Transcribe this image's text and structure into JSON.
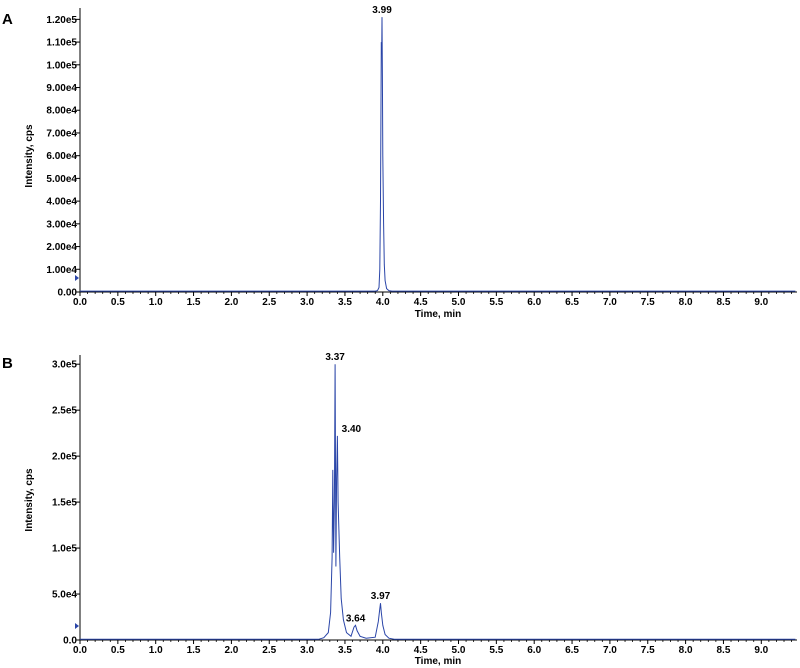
{
  "chart_data": [
    {
      "panel": "A",
      "type": "line",
      "xlabel": "Time, min",
      "ylabel": "Intensity, cps",
      "xlim": [
        0.0,
        9.45
      ],
      "ylim": [
        0,
        125000
      ],
      "x_ticks": [
        0.0,
        0.5,
        1.0,
        1.5,
        2.0,
        2.5,
        3.0,
        3.5,
        4.0,
        4.5,
        5.0,
        5.5,
        6.0,
        6.5,
        7.0,
        7.5,
        8.0,
        8.5,
        9.0
      ],
      "x_tick_labels": [
        "0.0",
        "0.5",
        "1.0",
        "1.5",
        "2.0",
        "2.5",
        "3.0",
        "3.5",
        "4.0",
        "4.5",
        "5.0",
        "5.5",
        "6.0",
        "6.5",
        "7.0",
        "7.5",
        "8.0",
        "8.5",
        "9.0"
      ],
      "y_ticks": [
        0,
        10000,
        20000,
        30000,
        40000,
        50000,
        60000,
        70000,
        80000,
        90000,
        100000,
        110000,
        120000
      ],
      "y_tick_labels": [
        "0.00",
        "1.00e4",
        "2.00e4",
        "3.00e4",
        "4.00e4",
        "5.00e4",
        "6.00e4",
        "7.00e4",
        "8.00e4",
        "9.00e4",
        "1.00e5",
        "1.10e5",
        "1.20e5"
      ],
      "series": [
        {
          "x": [
            0.0,
            3.9,
            3.93,
            3.95,
            3.96,
            3.97,
            3.975,
            3.98,
            3.985,
            3.99,
            3.995,
            4.0,
            4.01,
            4.02,
            4.03,
            4.05,
            4.08,
            4.12,
            9.45
          ],
          "y": [
            400,
            400,
            600,
            2000,
            10000,
            40000,
            75000,
            110000,
            105000,
            121000,
            95000,
            60000,
            30000,
            12000,
            5000,
            1500,
            600,
            400,
            400
          ]
        }
      ],
      "annotations": [
        {
          "x": 3.99,
          "y": 121000,
          "text": "3.99"
        }
      ]
    },
    {
      "panel": "B",
      "type": "line",
      "xlabel": "Time, min",
      "ylabel": "Intensity, cps",
      "xlim": [
        0.0,
        9.45
      ],
      "ylim": [
        0,
        310000
      ],
      "x_ticks": [
        0.0,
        0.5,
        1.0,
        1.5,
        2.0,
        2.5,
        3.0,
        3.5,
        4.0,
        4.5,
        5.0,
        5.5,
        6.0,
        6.5,
        7.0,
        7.5,
        8.0,
        8.5,
        9.0
      ],
      "x_tick_labels": [
        "0.0",
        "0.5",
        "1.0",
        "1.5",
        "2.0",
        "2.5",
        "3.0",
        "3.5",
        "4.0",
        "4.5",
        "5.0",
        "5.5",
        "6.0",
        "6.5",
        "7.0",
        "7.5",
        "8.0",
        "8.5",
        "9.0"
      ],
      "y_ticks": [
        0,
        50000,
        100000,
        150000,
        200000,
        250000,
        300000
      ],
      "y_tick_labels": [
        "0.0",
        "5.0e4",
        "1.0e5",
        "1.5e5",
        "2.0e5",
        "2.5e5",
        "3.0e5"
      ],
      "series": [
        {
          "x": [
            0.0,
            3.15,
            3.22,
            3.28,
            3.31,
            3.33,
            3.34,
            3.35,
            3.36,
            3.37,
            3.38,
            3.39,
            3.4,
            3.41,
            3.42,
            3.43,
            3.45,
            3.48,
            3.52,
            3.58,
            3.62,
            3.64,
            3.66,
            3.7,
            3.78,
            3.9,
            3.94,
            3.96,
            3.97,
            3.98,
            4.0,
            4.03,
            4.08,
            4.15,
            9.45
          ],
          "y": [
            800,
            800,
            2500,
            8000,
            30000,
            90000,
            185000,
            95000,
            150000,
            300000,
            80000,
            175000,
            222000,
            150000,
            120000,
            90000,
            45000,
            22000,
            8000,
            4000,
            14000,
            16000,
            10000,
            4000,
            2000,
            3000,
            20000,
            34000,
            40000,
            30000,
            16000,
            6000,
            2000,
            900,
            800
          ]
        }
      ],
      "annotations": [
        {
          "x": 3.37,
          "y": 300000,
          "text": "3.37"
        },
        {
          "x": 3.4,
          "y": 222000,
          "text": "3.40"
        },
        {
          "x": 3.64,
          "y": 16000,
          "text": "3.64"
        },
        {
          "x": 3.97,
          "y": 40000,
          "text": "3.97"
        }
      ]
    }
  ]
}
